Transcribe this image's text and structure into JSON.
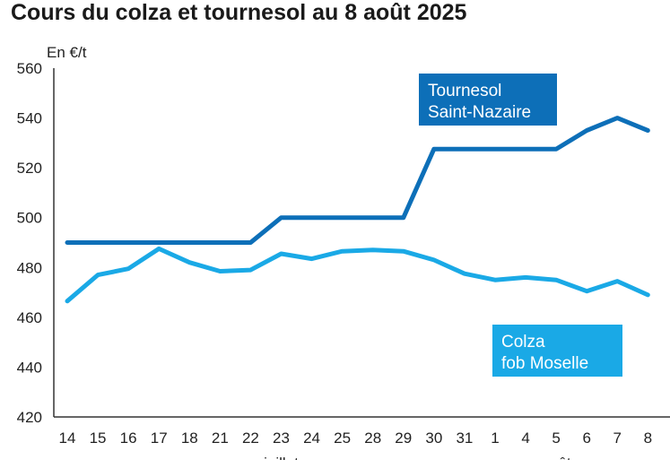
{
  "chart_data": {
    "type": "line",
    "title": "Cours du colza et tournesol au 8 août 2025",
    "unit_label": "En €/t",
    "ylim": [
      420,
      560
    ],
    "y_ticks": [
      420,
      440,
      460,
      480,
      500,
      520,
      540,
      560
    ],
    "categories": [
      "14",
      "15",
      "16",
      "17",
      "18",
      "21",
      "22",
      "23",
      "24",
      "25",
      "28",
      "29",
      "30",
      "31",
      "1",
      "4",
      "5",
      "6",
      "7",
      "8"
    ],
    "month_labels": [
      {
        "text": "juillet",
        "category_index": 7
      },
      {
        "text": "août",
        "category_index": 16
      }
    ],
    "grid": false,
    "series": [
      {
        "name_lines": [
          "Tournesol",
          "Saint-Nazaire"
        ],
        "color": "#0d6fb8",
        "values": [
          490,
          490,
          490,
          490,
          490,
          490,
          490,
          500,
          500,
          500,
          500,
          500,
          527.5,
          527.5,
          527.5,
          527.5,
          527.5,
          535,
          540,
          535
        ]
      },
      {
        "name_lines": [
          "Colza",
          "fob Moselle"
        ],
        "color": "#1aa9e6",
        "values": [
          466.5,
          477,
          479.5,
          487.5,
          482,
          478.5,
          479,
          485.5,
          483.5,
          486.5,
          487,
          486.5,
          483,
          477.5,
          475,
          476,
          475,
          470.5,
          474.5,
          469
        ]
      }
    ]
  }
}
